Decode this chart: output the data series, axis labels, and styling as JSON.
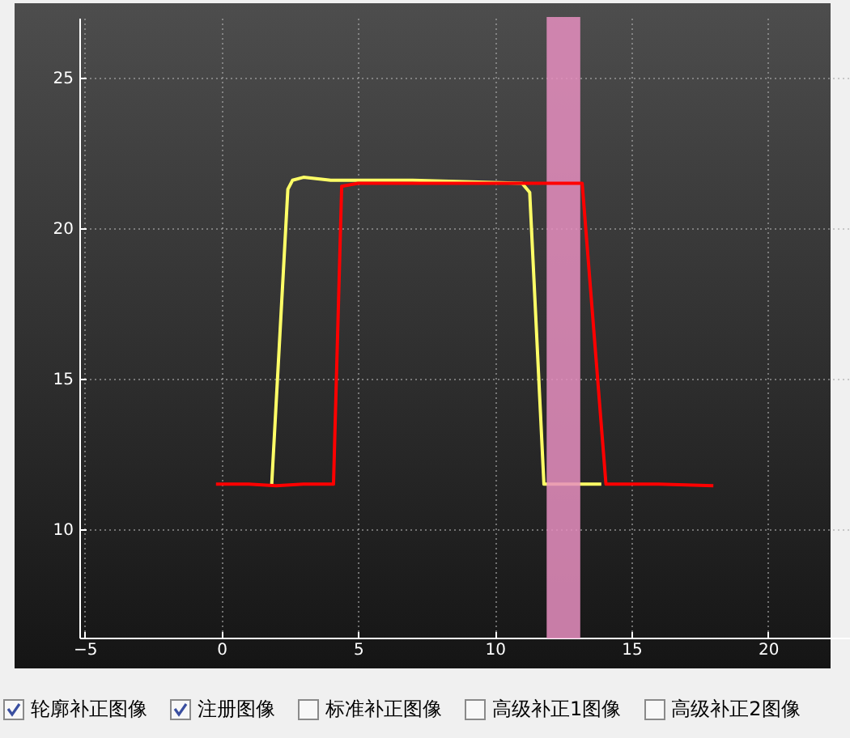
{
  "chart_data": {
    "type": "line",
    "xlim": [
      -5.2,
      23
    ],
    "ylim": [
      6.4,
      27
    ],
    "xticks": [
      -5,
      0,
      5,
      10,
      15,
      20
    ],
    "yticks": [
      10,
      15,
      20,
      25
    ],
    "grid": true,
    "line_style": "solid",
    "series": [
      {
        "color": "#ffff66",
        "x": [
          1.84,
          2.43,
          2.6,
          3,
          4,
          5,
          7,
          11,
          11.28,
          11.8,
          13,
          13.9
        ],
        "values": [
          11.5,
          21.3,
          21.6,
          21.7,
          21.6,
          21.6,
          21.6,
          21.5,
          21.2,
          11.5,
          11.5,
          11.5
        ]
      },
      {
        "color": "#ff0000",
        "x": [
          -0.2,
          1,
          2,
          3,
          4.1,
          4.4,
          5,
          7,
          9,
          11,
          13.2,
          14.07,
          16,
          18
        ],
        "values": [
          11.5,
          11.5,
          11.45,
          11.5,
          11.5,
          21.4,
          21.5,
          21.5,
          21.5,
          21.5,
          21.5,
          11.5,
          11.5,
          11.45
        ]
      }
    ],
    "bands": [
      {
        "axis": "x",
        "from": 11.93,
        "to": 13.1,
        "color": "#e78fc0"
      }
    ],
    "annotations": [
      "轮廓补正图像",
      "注册图像",
      "标准补正图像",
      "高级补正1图像",
      "高级补正2图像"
    ]
  }
}
